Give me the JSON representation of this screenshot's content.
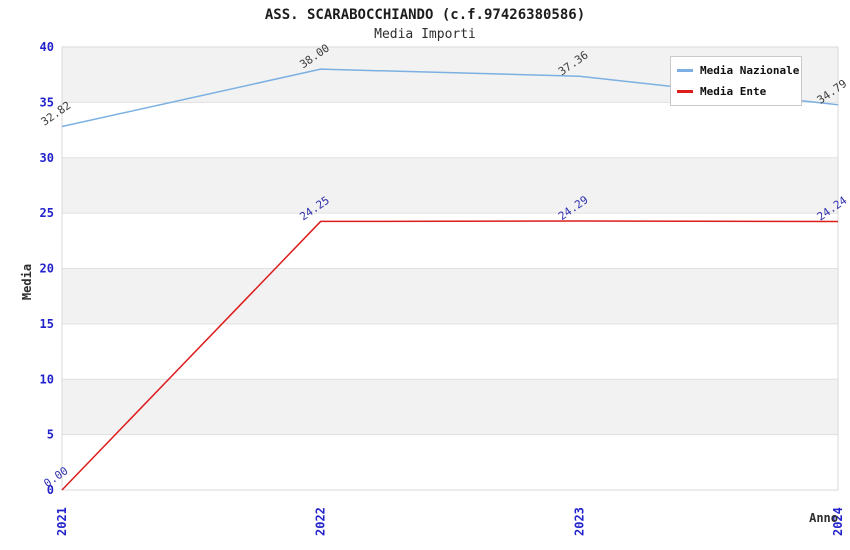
{
  "chart_data": {
    "type": "line",
    "title": "ASS. SCARABOCCHIANDO (c.f.97426380586)",
    "subtitle": "Media Importi",
    "xlabel": "Anno",
    "ylabel": "Media",
    "x": [
      "2021",
      "2022",
      "2023",
      "2024"
    ],
    "series": [
      {
        "name": "Media Nazionale",
        "color": "#7cb0e2",
        "label_color": "#3c3c3c",
        "values": [
          32.82,
          38.0,
          37.36,
          34.79
        ],
        "point_labels": [
          "32.82",
          "38.00",
          "37.36",
          "34.79"
        ]
      },
      {
        "name": "Media Ente",
        "color": "#dd1c1c",
        "label_color": "#2f2fae",
        "values": [
          0.0,
          24.25,
          24.29,
          24.24
        ],
        "point_labels": [
          "0.00",
          "24.25",
          "24.29",
          "24.24"
        ]
      }
    ],
    "ylim": [
      0,
      40
    ],
    "ytick_step": 5,
    "yticks": [
      0,
      5,
      10,
      15,
      20,
      25,
      30,
      35,
      40
    ],
    "legend_position": "top-right",
    "grid": "horizontal-bands"
  },
  "colors": {
    "axis_tick": "#2222cc",
    "band": "#f2f2f2",
    "grid": "#e0e0e0",
    "plot_border": "#d9d9d9",
    "legend_border": "#c9c9c9",
    "background": "#ffffff"
  }
}
